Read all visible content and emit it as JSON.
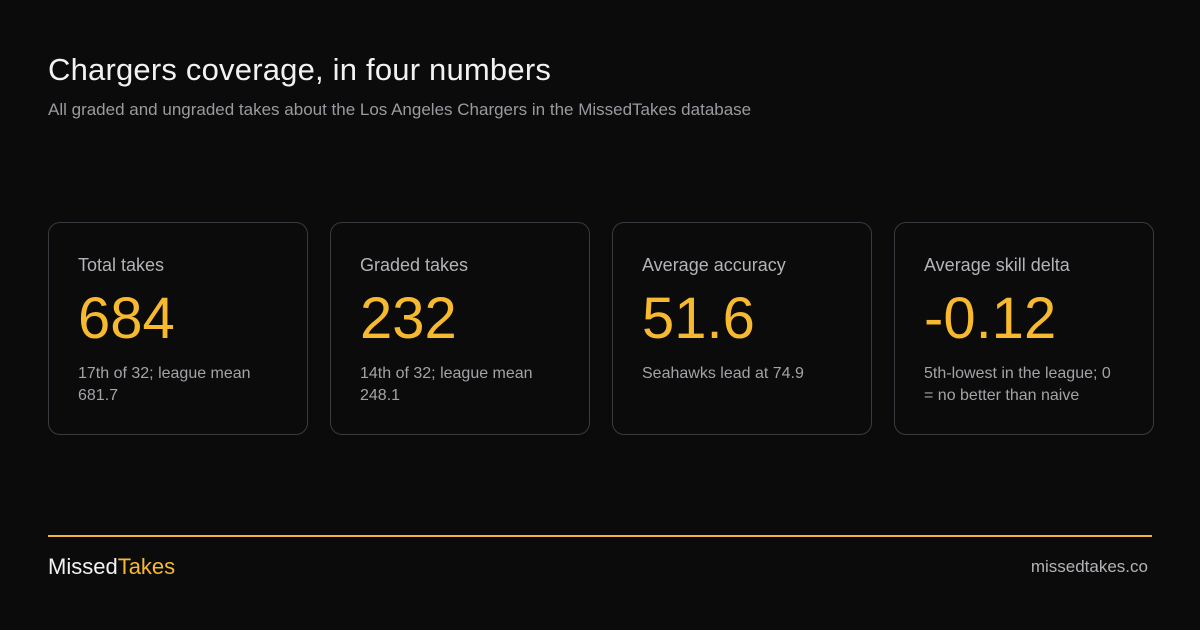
{
  "header": {
    "title": "Chargers coverage, in four numbers",
    "subtitle": "All graded and ungraded takes about the Los Angeles Chargers in the MissedTakes database"
  },
  "cards": [
    {
      "label": "Total takes",
      "value": "684",
      "note": "17th of 32; league mean 681.7"
    },
    {
      "label": "Graded takes",
      "value": "232",
      "note": "14th of 32; league mean 248.1"
    },
    {
      "label": "Average accuracy",
      "value": "51.6",
      "note": "Seahawks lead at 74.9"
    },
    {
      "label": "Average skill delta",
      "value": "-0.12",
      "note": "5th-lowest in the league; 0 = no better than naive"
    }
  ],
  "footer": {
    "brand": [
      "Missed",
      "Takes"
    ],
    "url": "missedtakes.co"
  }
}
